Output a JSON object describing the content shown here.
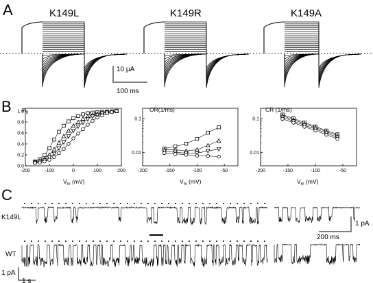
{
  "panelA": {
    "letter": "A",
    "titles": [
      "K149L",
      "K149R",
      "K149A"
    ],
    "scalebar_current": "10 μA",
    "scalebar_time": "100 ms"
  },
  "panelB": {
    "letter": "B",
    "y_label_main": "P",
    "y_label_sub": "o",
    "x_label_main": "V",
    "x_label_sub": "m",
    "x_label_unit": " (mV)",
    "titleOR": "OR(1/ms)",
    "titleCR": "CR (1/ms)"
  },
  "panelC": {
    "letter": "C",
    "label_mut": "K149L",
    "label_wt": "WT",
    "scale_current": "1 pA",
    "scale_time": "200 ms",
    "scale_current_2": "1 pA",
    "scale_time_2": "1 s"
  },
  "chart_data": [
    {
      "type": "scatter",
      "title": "",
      "ylabel": "Po",
      "xlabel": "Vm (mV)",
      "xlim": [
        -200,
        200
      ],
      "ylim": [
        0,
        1.05
      ],
      "x_ticks": [
        -200,
        -100,
        0,
        100,
        200
      ],
      "y_ticks": [
        0.0,
        0.2,
        0.4,
        0.6,
        0.8,
        1.0
      ],
      "y_tick_labels": [
        "0.0",
        "0.2",
        "0.4",
        "0.6",
        "0.8",
        "1.0"
      ],
      "x": [
        -160,
        -140,
        -120,
        -100,
        -80,
        -60,
        -40,
        -20,
        0,
        20,
        40,
        60,
        80,
        100,
        120,
        140,
        160,
        180
      ],
      "series": [
        {
          "marker": "square",
          "values": [
            0.08,
            0.12,
            0.2,
            0.32,
            0.48,
            0.62,
            0.73,
            0.81,
            0.87,
            0.91,
            0.94,
            0.96,
            0.97,
            0.98,
            0.985,
            0.99,
            0.99,
            1.0
          ]
        },
        {
          "marker": "triangle-up",
          "values": [
            0.07,
            0.09,
            0.13,
            0.2,
            0.3,
            0.42,
            0.54,
            0.64,
            0.73,
            0.8,
            0.86,
            0.9,
            0.93,
            0.95,
            0.97,
            0.98,
            0.99,
            1.0
          ]
        },
        {
          "marker": "triangle-down",
          "values": [
            0.06,
            0.08,
            0.1,
            0.15,
            0.22,
            0.32,
            0.43,
            0.54,
            0.64,
            0.72,
            0.79,
            0.85,
            0.9,
            0.93,
            0.96,
            0.98,
            0.99,
            1.0
          ]
        },
        {
          "marker": "circle",
          "values": [
            0.05,
            0.06,
            0.08,
            0.11,
            0.16,
            0.23,
            0.31,
            0.4,
            0.5,
            0.59,
            0.67,
            0.75,
            0.82,
            0.88,
            0.92,
            0.96,
            0.98,
            1.0
          ]
        }
      ]
    },
    {
      "type": "line",
      "title": "OR(1/ms)",
      "xlabel": "Vm (mV)",
      "xlim": [
        -200,
        -25
      ],
      "ylim": [
        0.004,
        0.2
      ],
      "y_scale": "log",
      "x_ticks": [
        -200,
        -150,
        -100,
        -50
      ],
      "y_ticks": [
        0.01,
        0.1
      ],
      "y_tick_labels": [
        "0.01",
        "0.1"
      ],
      "x": [
        -160,
        -140,
        -120,
        -100,
        -80,
        -60
      ],
      "series": [
        {
          "marker": "square",
          "values": [
            0.013,
            0.015,
            0.018,
            0.025,
            0.038,
            0.055
          ]
        },
        {
          "marker": "triangle-up",
          "values": [
            0.012,
            0.012,
            0.011,
            0.012,
            0.016,
            0.022
          ]
        },
        {
          "marker": "triangle-down",
          "values": [
            0.011,
            0.01,
            0.0095,
            0.0095,
            0.011,
            0.0125
          ]
        },
        {
          "marker": "circle",
          "values": [
            0.0095,
            0.009,
            0.0085,
            0.008,
            0.0078,
            0.0075
          ]
        }
      ]
    },
    {
      "type": "line",
      "title": "CR (1/ms)",
      "xlabel": "Vm (mV)",
      "xlim": [
        -200,
        -25
      ],
      "ylim": [
        0.004,
        0.2
      ],
      "y_scale": "log",
      "x_ticks": [
        -200,
        -150,
        -100,
        -50
      ],
      "y_ticks": [
        0.01,
        0.1
      ],
      "y_tick_labels": [
        "0.01",
        "0.1"
      ],
      "x": [
        -160,
        -140,
        -120,
        -100,
        -80,
        -60
      ],
      "series": [
        {
          "marker": "square",
          "values": [
            0.13,
            0.1,
            0.076,
            0.058,
            0.044,
            0.034
          ]
        },
        {
          "marker": "triangle-up",
          "values": [
            0.12,
            0.092,
            0.07,
            0.054,
            0.041,
            0.031
          ]
        },
        {
          "marker": "triangle-down",
          "values": [
            0.108,
            0.083,
            0.063,
            0.049,
            0.037,
            0.028
          ]
        },
        {
          "marker": "circle",
          "values": [
            0.097,
            0.075,
            0.057,
            0.044,
            0.033,
            0.025
          ]
        }
      ]
    }
  ]
}
